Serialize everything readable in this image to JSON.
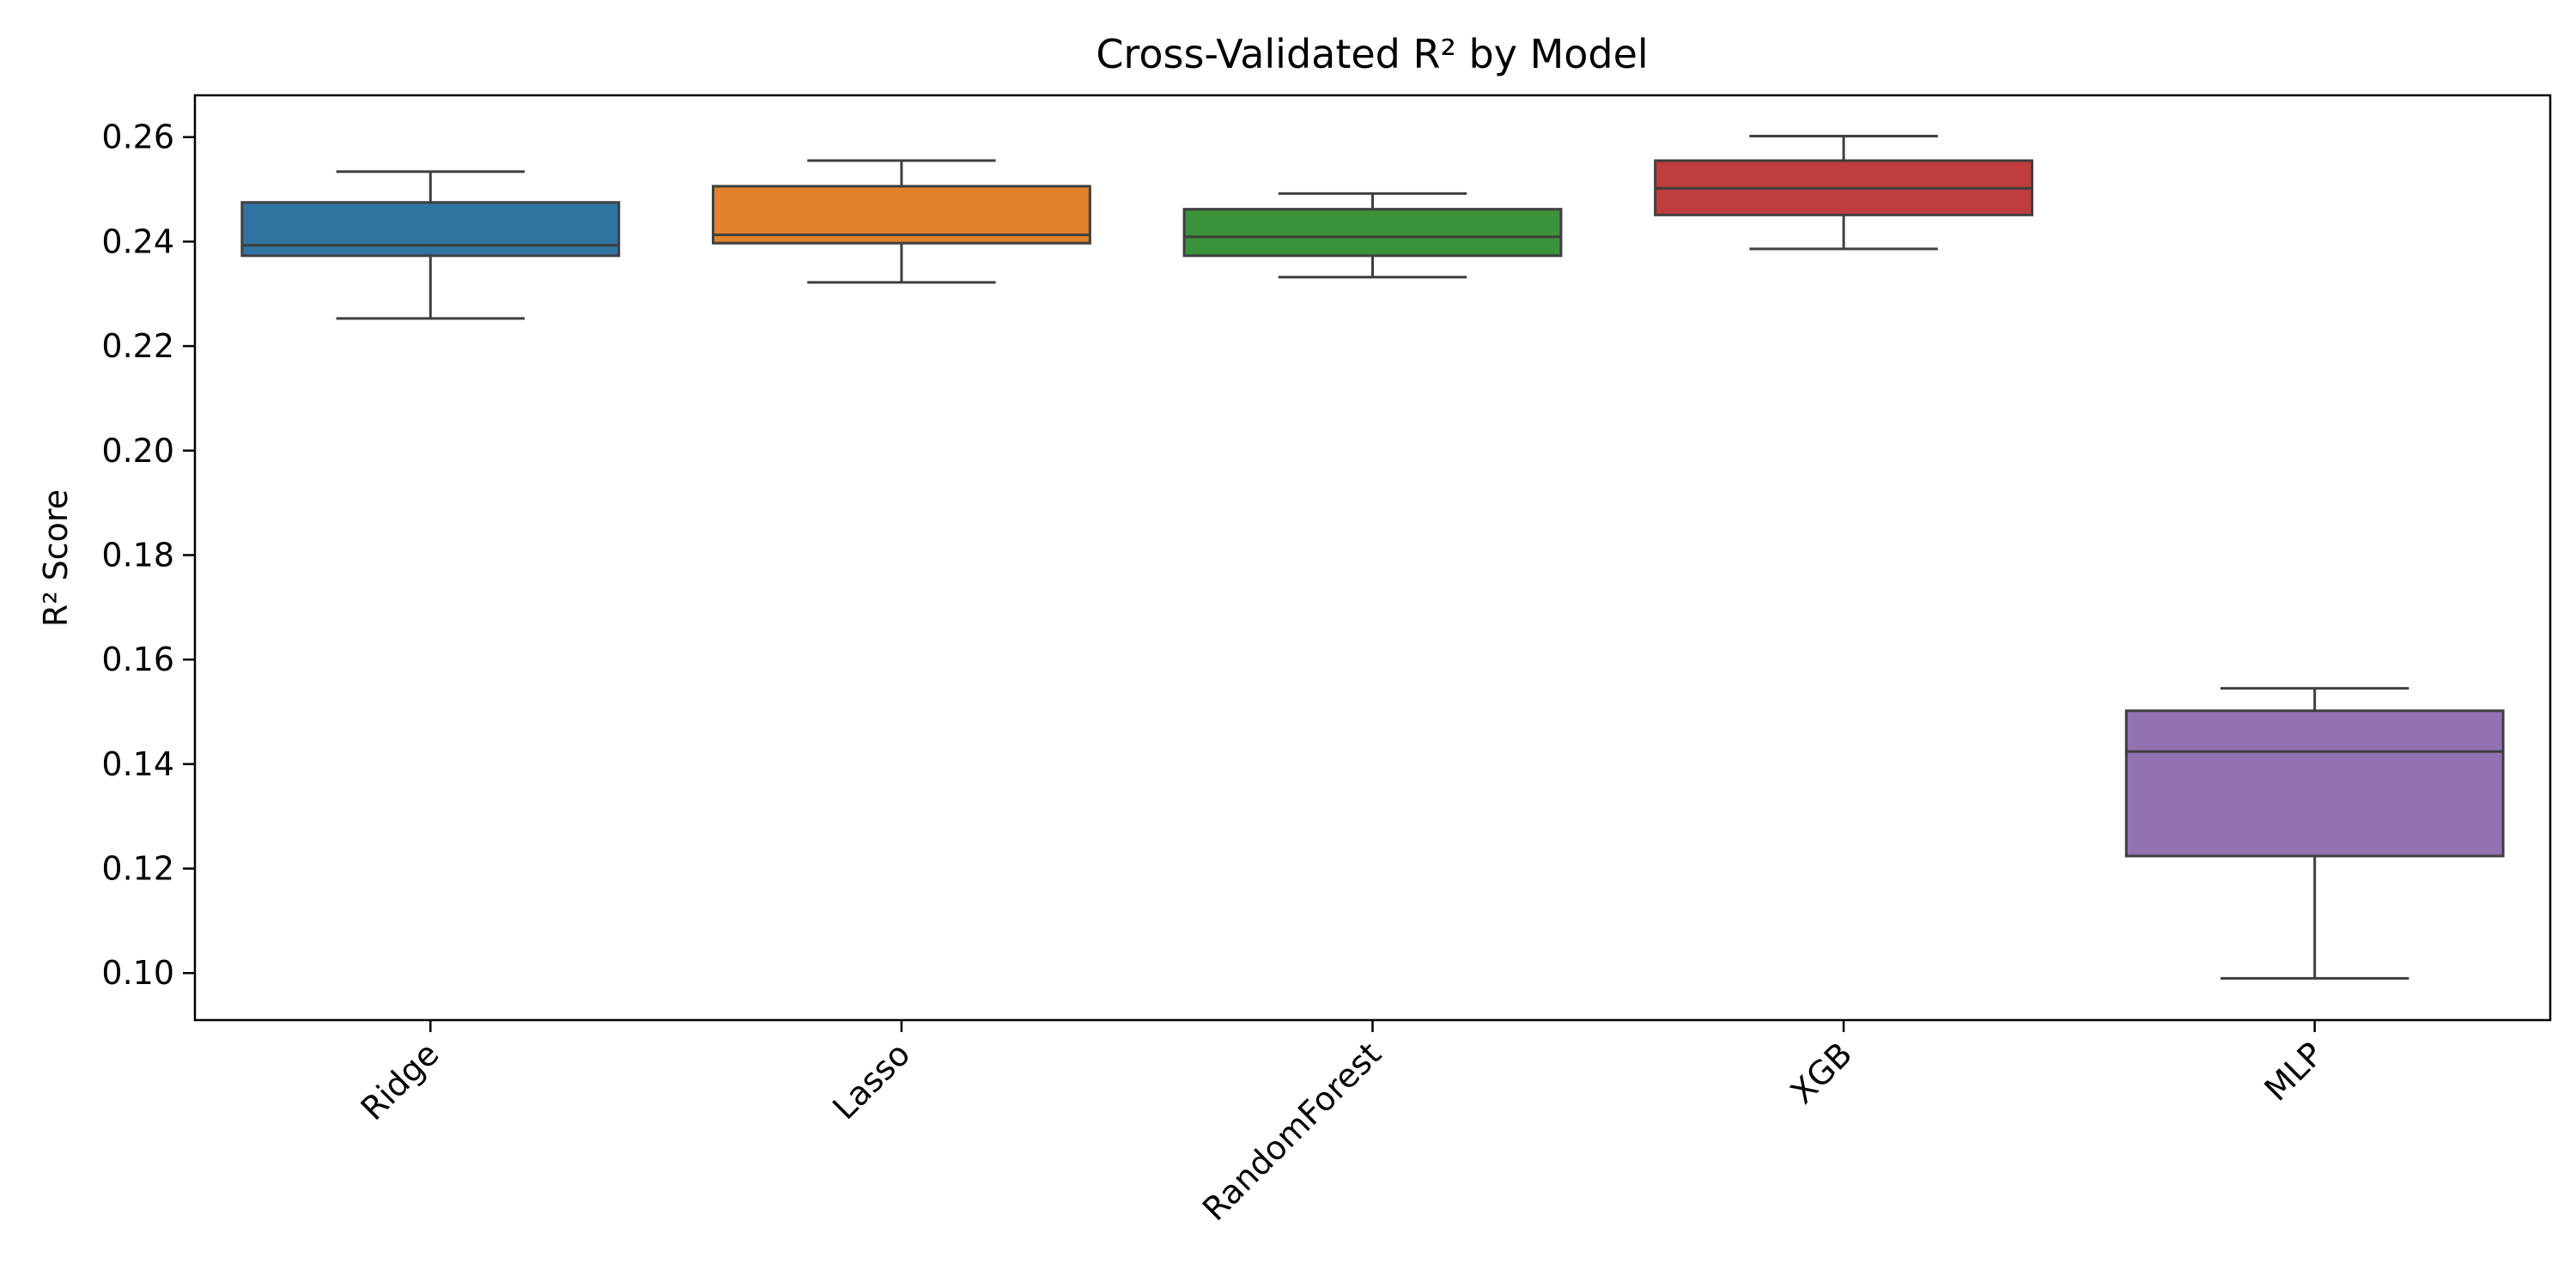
{
  "chart_data": {
    "type": "box",
    "title": "Cross-Validated R² by Model",
    "xlabel": "",
    "ylabel": "R² Score",
    "ylim": [
      0.091,
      0.268
    ],
    "yticks": [
      0.1,
      0.12,
      0.14,
      0.16,
      0.18,
      0.2,
      0.22,
      0.24,
      0.26
    ],
    "ytick_labels": [
      "0.10",
      "0.12",
      "0.14",
      "0.16",
      "0.18",
      "0.20",
      "0.22",
      "0.24",
      "0.26"
    ],
    "grid": false,
    "categories": [
      "Ridge",
      "Lasso",
      "RandomForest",
      "XGB",
      "MLP"
    ],
    "boxes": [
      {
        "category": "Ridge",
        "whisker_low": 0.2253,
        "q1": 0.2373,
        "median": 0.2393,
        "q3": 0.2475,
        "whisker_high": 0.2534,
        "color": "#3274a1"
      },
      {
        "category": "Lasso",
        "whisker_low": 0.2322,
        "q1": 0.2397,
        "median": 0.2413,
        "q3": 0.2506,
        "whisker_high": 0.2555,
        "color": "#e1812c"
      },
      {
        "category": "RandomForest",
        "whisker_low": 0.2332,
        "q1": 0.2373,
        "median": 0.2409,
        "q3": 0.2462,
        "whisker_high": 0.2492,
        "color": "#3a923a"
      },
      {
        "category": "XGB",
        "whisker_low": 0.2386,
        "q1": 0.2451,
        "median": 0.2502,
        "q3": 0.2555,
        "whisker_high": 0.2602,
        "color": "#c03d3e"
      },
      {
        "category": "MLP",
        "whisker_low": 0.099,
        "q1": 0.1224,
        "median": 0.1424,
        "q3": 0.1502,
        "whisker_high": 0.1545,
        "color": "#9372b2"
      }
    ]
  }
}
